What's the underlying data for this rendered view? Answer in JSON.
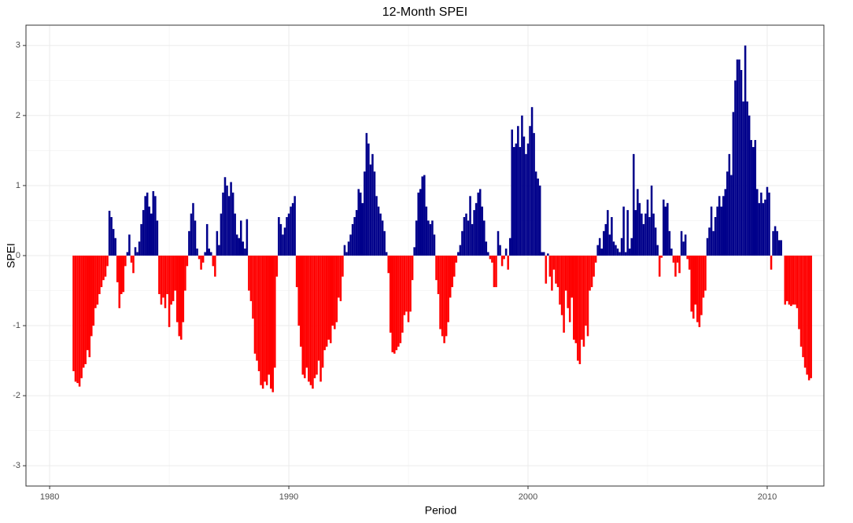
{
  "chart_data": {
    "type": "bar",
    "title": "12-Month SPEI",
    "x_label": "Period",
    "y_label": "SPEI",
    "positive_color": "#00008b",
    "negative_color": "#ff0000",
    "grid": true,
    "xlim": [
      1979.01,
      2012.37
    ],
    "ylim": [
      -3.29,
      3.29
    ],
    "xticks": [
      1980,
      1990,
      2000,
      2010
    ],
    "yticks": [
      -3,
      -2,
      -1,
      0,
      1,
      2,
      3
    ],
    "xticks_minor": [
      1985,
      1995,
      2005
    ],
    "yticks_minor": [
      -2.5,
      -1.5,
      -0.5,
      0.5,
      1.5,
      2.5
    ],
    "x": [
      1981,
      1981.083,
      1981.167,
      1981.25,
      1981.333,
      1981.417,
      1981.5,
      1981.583,
      1981.667,
      1981.75,
      1981.833,
      1981.917,
      1982,
      1982.083,
      1982.167,
      1982.25,
      1982.333,
      1982.417,
      1982.5,
      1982.583,
      1982.667,
      1982.75,
      1982.833,
      1982.917,
      1983,
      1983.083,
      1983.167,
      1983.25,
      1983.333,
      1983.417,
      1983.5,
      1983.583,
      1983.667,
      1983.75,
      1983.833,
      1983.917,
      1984,
      1984.083,
      1984.167,
      1984.25,
      1984.333,
      1984.417,
      1984.5,
      1984.583,
      1984.667,
      1984.75,
      1984.833,
      1984.917,
      1985,
      1985.083,
      1985.167,
      1985.25,
      1985.333,
      1985.417,
      1985.5,
      1985.583,
      1985.667,
      1985.75,
      1985.833,
      1985.917,
      1986,
      1986.083,
      1986.167,
      1986.25,
      1986.333,
      1986.417,
      1986.5,
      1986.583,
      1986.667,
      1986.75,
      1986.833,
      1986.917,
      1987,
      1987.083,
      1987.167,
      1987.25,
      1987.333,
      1987.417,
      1987.5,
      1987.583,
      1987.667,
      1987.75,
      1987.833,
      1987.917,
      1988,
      1988.083,
      1988.167,
      1988.25,
      1988.333,
      1988.417,
      1988.5,
      1988.583,
      1988.667,
      1988.75,
      1988.833,
      1988.917,
      1989,
      1989.083,
      1989.167,
      1989.25,
      1989.333,
      1989.417,
      1989.5,
      1989.583,
      1989.667,
      1989.75,
      1989.833,
      1989.917,
      1990,
      1990.083,
      1990.167,
      1990.25,
      1990.333,
      1990.417,
      1990.5,
      1990.583,
      1990.667,
      1990.75,
      1990.833,
      1990.917,
      1991,
      1991.083,
      1991.167,
      1991.25,
      1991.333,
      1991.417,
      1991.5,
      1991.583,
      1991.667,
      1991.75,
      1991.833,
      1991.917,
      1992,
      1992.083,
      1992.167,
      1992.25,
      1992.333,
      1992.417,
      1992.5,
      1992.583,
      1992.667,
      1992.75,
      1992.833,
      1992.917,
      1993,
      1993.083,
      1993.167,
      1993.25,
      1993.333,
      1993.417,
      1993.5,
      1993.583,
      1993.667,
      1993.75,
      1993.833,
      1993.917,
      1994,
      1994.083,
      1994.167,
      1994.25,
      1994.333,
      1994.417,
      1994.5,
      1994.583,
      1994.667,
      1994.75,
      1994.833,
      1994.917,
      1995,
      1995.083,
      1995.167,
      1995.25,
      1995.333,
      1995.417,
      1995.5,
      1995.583,
      1995.667,
      1995.75,
      1995.833,
      1995.917,
      1996,
      1996.083,
      1996.167,
      1996.25,
      1996.333,
      1996.417,
      1996.5,
      1996.583,
      1996.667,
      1996.75,
      1996.833,
      1996.917,
      1997,
      1997.083,
      1997.167,
      1997.25,
      1997.333,
      1997.417,
      1997.5,
      1997.583,
      1997.667,
      1997.75,
      1997.833,
      1997.917,
      1998,
      1998.083,
      1998.167,
      1998.25,
      1998.333,
      1998.417,
      1998.5,
      1998.583,
      1998.667,
      1998.75,
      1998.833,
      1998.917,
      1999,
      1999.083,
      1999.167,
      1999.25,
      1999.333,
      1999.417,
      1999.5,
      1999.583,
      1999.667,
      1999.75,
      1999.833,
      1999.917,
      2000,
      2000.083,
      2000.167,
      2000.25,
      2000.333,
      2000.417,
      2000.5,
      2000.583,
      2000.667,
      2000.75,
      2000.833,
      2000.917,
      2001,
      2001.083,
      2001.167,
      2001.25,
      2001.333,
      2001.417,
      2001.5,
      2001.583,
      2001.667,
      2001.75,
      2001.833,
      2001.917,
      2002,
      2002.083,
      2002.167,
      2002.25,
      2002.333,
      2002.417,
      2002.5,
      2002.583,
      2002.667,
      2002.75,
      2002.833,
      2002.917,
      2003,
      2003.083,
      2003.167,
      2003.25,
      2003.333,
      2003.417,
      2003.5,
      2003.583,
      2003.667,
      2003.75,
      2003.833,
      2003.917,
      2004,
      2004.083,
      2004.167,
      2004.25,
      2004.333,
      2004.417,
      2004.5,
      2004.583,
      2004.667,
      2004.75,
      2004.833,
      2004.917,
      2005,
      2005.083,
      2005.167,
      2005.25,
      2005.333,
      2005.417,
      2005.5,
      2005.583,
      2005.667,
      2005.75,
      2005.833,
      2005.917,
      2006,
      2006.083,
      2006.167,
      2006.25,
      2006.333,
      2006.417,
      2006.5,
      2006.583,
      2006.667,
      2006.75,
      2006.833,
      2006.917,
      2007,
      2007.083,
      2007.167,
      2007.25,
      2007.333,
      2007.417,
      2007.5,
      2007.583,
      2007.667,
      2007.75,
      2007.833,
      2007.917,
      2008,
      2008.083,
      2008.167,
      2008.25,
      2008.333,
      2008.417,
      2008.5,
      2008.583,
      2008.667,
      2008.75,
      2008.833,
      2008.917,
      2009,
      2009.083,
      2009.167,
      2009.25,
      2009.333,
      2009.417,
      2009.5,
      2009.583,
      2009.667,
      2009.75,
      2009.833,
      2009.917,
      2010,
      2010.083,
      2010.167,
      2010.25,
      2010.333,
      2010.417,
      2010.5,
      2010.583,
      2010.667,
      2010.75,
      2010.833,
      2010.917,
      2011,
      2011.083,
      2011.167,
      2011.25,
      2011.333,
      2011.417,
      2011.5,
      2011.583,
      2011.667,
      2011.75,
      2011.833
    ],
    "values": [
      -1.65,
      -1.8,
      -1.82,
      -1.87,
      -1.75,
      -1.6,
      -1.55,
      -1.35,
      -1.45,
      -1.15,
      -1.0,
      -0.75,
      -0.7,
      -0.55,
      -0.45,
      -0.35,
      -0.3,
      -0.15,
      0.64,
      0.55,
      0.38,
      0.25,
      -0.38,
      -0.75,
      -0.55,
      -0.52,
      -0.15,
      0.05,
      0.3,
      -0.1,
      -0.25,
      0.12,
      0.05,
      0.2,
      0.45,
      0.65,
      0.85,
      0.9,
      0.7,
      0.6,
      0.92,
      0.85,
      0.5,
      -0.55,
      -0.7,
      -0.6,
      -0.75,
      -0.55,
      -1.02,
      -0.7,
      -0.65,
      -0.5,
      -0.95,
      -1.15,
      -1.2,
      -0.95,
      -0.5,
      -0.15,
      0.35,
      0.6,
      0.75,
      0.5,
      0.1,
      -0.05,
      -0.2,
      -0.1,
      0.05,
      0.45,
      0.1,
      0.05,
      -0.15,
      -0.3,
      0.35,
      0.15,
      0.6,
      0.9,
      1.12,
      1.0,
      0.85,
      1.05,
      0.9,
      0.6,
      0.3,
      0.25,
      0.5,
      0.2,
      0.1,
      0.52,
      -0.5,
      -0.65,
      -0.9,
      -1.4,
      -1.5,
      -1.65,
      -1.85,
      -1.9,
      -1.8,
      -1.85,
      -1.7,
      -1.9,
      -1.95,
      -1.6,
      -0.3,
      0.55,
      0.45,
      0.3,
      0.4,
      0.55,
      0.6,
      0.7,
      0.75,
      0.85,
      -0.45,
      -1.0,
      -1.3,
      -1.7,
      -1.75,
      -1.6,
      -1.8,
      -1.85,
      -1.9,
      -1.75,
      -1.7,
      -1.5,
      -1.8,
      -1.6,
      -1.35,
      -1.3,
      -1.2,
      -1.25,
      -1.0,
      -1.05,
      -0.95,
      -0.6,
      -0.65,
      -0.3,
      0.15,
      0.05,
      0.2,
      0.3,
      0.45,
      0.55,
      0.65,
      0.95,
      0.9,
      0.75,
      1.2,
      1.75,
      1.6,
      1.3,
      1.45,
      1.2,
      0.85,
      0.7,
      0.6,
      0.5,
      0.35,
      0.05,
      -0.25,
      -1.1,
      -1.38,
      -1.4,
      -1.35,
      -1.3,
      -1.25,
      -1.1,
      -0.85,
      -0.8,
      -0.95,
      -0.8,
      -0.35,
      0.12,
      0.5,
      0.9,
      0.95,
      1.13,
      1.15,
      0.7,
      0.5,
      0.45,
      0.5,
      0.3,
      -0.35,
      -0.55,
      -1.05,
      -1.15,
      -1.25,
      -1.15,
      -0.95,
      -0.6,
      -0.45,
      -0.3,
      -0.1,
      0.05,
      0.15,
      0.35,
      0.55,
      0.6,
      0.5,
      0.85,
      0.45,
      0.65,
      0.75,
      0.9,
      0.95,
      0.7,
      0.5,
      0.2,
      0.05,
      -0.05,
      -0.1,
      -0.45,
      -0.45,
      0.35,
      0.15,
      -0.15,
      -0.05,
      0.1,
      -0.2,
      0.25,
      1.8,
      1.55,
      1.6,
      1.85,
      1.55,
      2.0,
      1.7,
      1.45,
      1.6,
      1.85,
      2.12,
      1.75,
      1.2,
      1.1,
      1.0,
      0.05,
      0.05,
      -0.4,
      0.03,
      -0.3,
      -0.5,
      -0.2,
      -0.4,
      -0.45,
      -0.7,
      -0.85,
      -1.1,
      -0.5,
      -0.75,
      -0.95,
      -0.6,
      -1.2,
      -1.25,
      -1.5,
      -1.55,
      -1.2,
      -1.3,
      -1.0,
      -1.15,
      -0.5,
      -0.45,
      -0.3,
      -0.1,
      0.15,
      0.25,
      0.1,
      0.35,
      0.45,
      0.65,
      0.3,
      0.55,
      0.2,
      0.15,
      0.1,
      0.05,
      0.25,
      0.7,
      0.05,
      0.65,
      0.1,
      0.25,
      1.45,
      0.65,
      0.95,
      0.75,
      0.6,
      0.45,
      0.6,
      0.8,
      0.55,
      1.0,
      0.6,
      0.4,
      0.15,
      -0.3,
      -0.03,
      0.8,
      0.7,
      0.75,
      0.35,
      0.1,
      -0.1,
      -0.3,
      -0.1,
      -0.25,
      0.35,
      0.2,
      0.3,
      -0.05,
      -0.2,
      -0.8,
      -0.9,
      -0.7,
      -0.95,
      -1.02,
      -0.85,
      -0.6,
      -0.5,
      0.25,
      0.4,
      0.7,
      0.35,
      0.55,
      0.7,
      0.85,
      0.7,
      0.85,
      0.95,
      1.2,
      1.45,
      1.15,
      2.05,
      2.5,
      2.8,
      2.8,
      2.65,
      2.2,
      3.0,
      2.2,
      2.0,
      1.65,
      1.55,
      1.65,
      0.95,
      0.75,
      0.9,
      0.75,
      0.8,
      0.98,
      0.9,
      -0.2,
      0.35,
      0.42,
      0.35,
      0.22,
      0.22,
      0,
      -0.7,
      -0.65,
      -0.7,
      -0.72,
      -0.7,
      -0.7,
      -0.75,
      -1.05,
      -1.3,
      -1.45,
      -1.6,
      -1.7,
      -1.78,
      -1.75
    ]
  }
}
